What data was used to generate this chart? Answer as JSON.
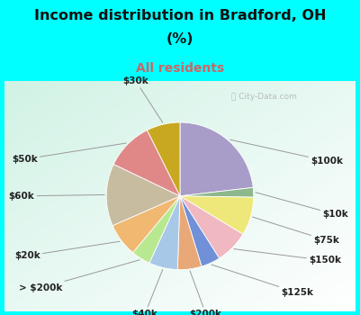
{
  "title_line1": "Income distribution in Bradford, OH",
  "title_line2": "(%)",
  "subtitle": "All residents",
  "title_color": "#111111",
  "subtitle_color": "#cc6666",
  "bg_cyan": "#00FFFF",
  "watermark": "ⓘ City-Data.com",
  "slices": [
    {
      "label": "$100k",
      "value": 22,
      "color": "#a89cc8"
    },
    {
      "label": "$10k",
      "value": 2,
      "color": "#8db88d"
    },
    {
      "label": "$75k",
      "value": 8,
      "color": "#eee87a"
    },
    {
      "label": "$150k",
      "value": 7,
      "color": "#f0b8c0"
    },
    {
      "label": "$125k",
      "value": 4,
      "color": "#7090d8"
    },
    {
      "label": "$200k",
      "value": 5,
      "color": "#e8a878"
    },
    {
      "label": "$40k",
      "value": 6,
      "color": "#a8c8e8"
    },
    {
      "label": "> $200k",
      "value": 4,
      "color": "#b8e890"
    },
    {
      "label": "$20k",
      "value": 7,
      "color": "#f0b870"
    },
    {
      "label": "$60k",
      "value": 13,
      "color": "#c8bca0"
    },
    {
      "label": "$50k",
      "value": 10,
      "color": "#e08888"
    },
    {
      "label": "$30k",
      "value": 7,
      "color": "#c8a820"
    }
  ],
  "label_fontsize": 7.5,
  "label_color": "#222222",
  "label_info": {
    "$100k": [
      1.42,
      0.38,
      "left"
    ],
    "$10k": [
      1.55,
      -0.2,
      "left"
    ],
    "$75k": [
      1.45,
      -0.48,
      "left"
    ],
    "$150k": [
      1.4,
      -0.7,
      "left"
    ],
    "$125k": [
      1.1,
      -1.05,
      "left"
    ],
    "$200k": [
      0.28,
      -1.28,
      "center"
    ],
    "$40k": [
      -0.38,
      -1.28,
      "center"
    ],
    "> $200k": [
      -1.28,
      -1.0,
      "right"
    ],
    "$20k": [
      -1.52,
      -0.65,
      "right"
    ],
    "$60k": [
      -1.58,
      0.0,
      "right"
    ],
    "$50k": [
      -1.55,
      0.4,
      "right"
    ],
    "$30k": [
      -0.48,
      1.25,
      "center"
    ]
  }
}
